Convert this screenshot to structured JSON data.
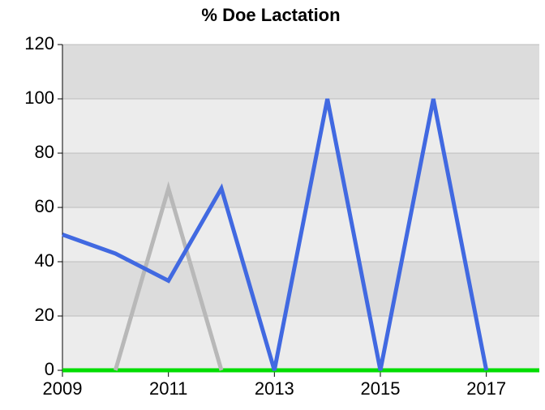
{
  "chart_data": {
    "type": "line",
    "title": "% Doe Lactation",
    "x": [
      2009,
      2010,
      2011,
      2012,
      2013,
      2014,
      2015,
      2016,
      2017,
      2018
    ],
    "series": [
      {
        "color": "#00dd00",
        "values": [
          0,
          0,
          0,
          0,
          0,
          0,
          0,
          0,
          0,
          0
        ]
      },
      {
        "color": "#b8b8b8",
        "values": [
          null,
          0,
          67,
          0,
          null,
          null,
          null,
          null,
          null,
          null
        ]
      },
      {
        "color": "#4169e1",
        "values": [
          50,
          43,
          33,
          67,
          0,
          100,
          0,
          100,
          0,
          null
        ]
      }
    ],
    "xlim": [
      2009,
      2018
    ],
    "xticks": [
      2009,
      2011,
      2013,
      2015,
      2017
    ],
    "ylim": [
      0,
      120
    ],
    "yticks": [
      0,
      20,
      40,
      60,
      80,
      100,
      120
    ],
    "grid": true,
    "band_colors": [
      "#ececec",
      "#dcdcdc"
    ]
  }
}
